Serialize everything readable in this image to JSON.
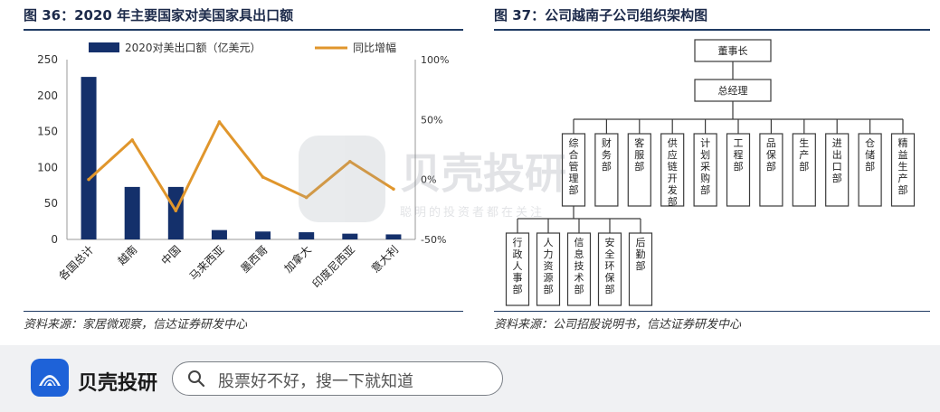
{
  "left_figure": {
    "title": "图 36：2020 年主要国家对美国家具出口额",
    "source": "资料来源：家居微观察，信达证券研发中心"
  },
  "right_figure": {
    "title": "图 37：公司越南子公司组织架构图",
    "source": "资料来源：公司招股说明书，信达证券研发中心"
  },
  "chart_data": {
    "type": "bar",
    "categories": [
      "各国总计",
      "越南",
      "中国",
      "马来西亚",
      "墨西哥",
      "加拿大",
      "印度尼西亚",
      "意大利"
    ],
    "series": [
      {
        "name": "2020对美出口额（亿美元）",
        "type": "bar",
        "axis": "left",
        "color": "#14306b",
        "values": [
          226,
          73,
          73,
          13,
          11,
          10,
          8,
          7
        ]
      },
      {
        "name": "同比增幅",
        "type": "line",
        "axis": "right",
        "color": "#e0962c",
        "values": [
          0,
          33,
          -26,
          48,
          2,
          -15,
          15,
          -8
        ]
      }
    ],
    "y_left": {
      "ylim": [
        0,
        250
      ],
      "ticks": [
        "0",
        "50",
        "100",
        "150",
        "200",
        "250"
      ]
    },
    "y_right": {
      "ylim": [
        -50,
        100
      ],
      "ticks": [
        "-50%",
        "0%",
        "50%",
        "100%"
      ]
    },
    "grid": false,
    "legend_position": "top"
  },
  "org_chart": {
    "root": "董事长",
    "level2": "总经理",
    "departments": [
      "综合管理部",
      "财务部",
      "客服部",
      "供应链开发部",
      "计划采购部",
      "工程部",
      "品保部",
      "生产部",
      "进出口部",
      "仓储部",
      "精益生产部"
    ],
    "sub_departments": [
      "行政人事部",
      "人力资源部",
      "信息技术部",
      "安全环保部",
      "后勤部"
    ]
  },
  "watermark": {
    "name": "贝壳投研",
    "slogan": "聪明的投资者都在关注"
  },
  "bottom_bar": {
    "brand": "贝壳投研",
    "search_placeholder": "股票好不好，搜一下就知道"
  }
}
